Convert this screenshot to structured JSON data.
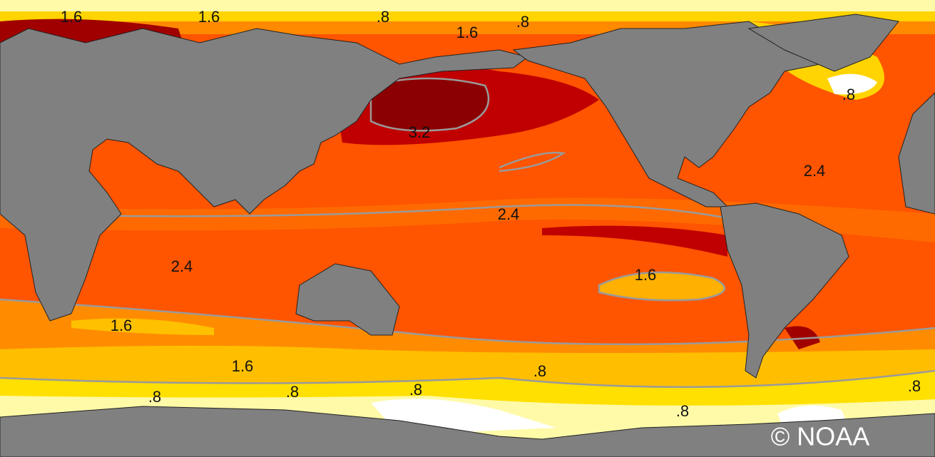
{
  "map": {
    "contour_labels": [
      "1.6",
      "1.6",
      ".8",
      ".8",
      "1.6",
      "3.2",
      "2.4",
      ".8",
      "2.4",
      "2.4",
      "1.6",
      "1.6",
      "1.6",
      ".8",
      ".8",
      ".8",
      ".8",
      ".8",
      ".8"
    ],
    "credit": "© NOAA"
  }
}
